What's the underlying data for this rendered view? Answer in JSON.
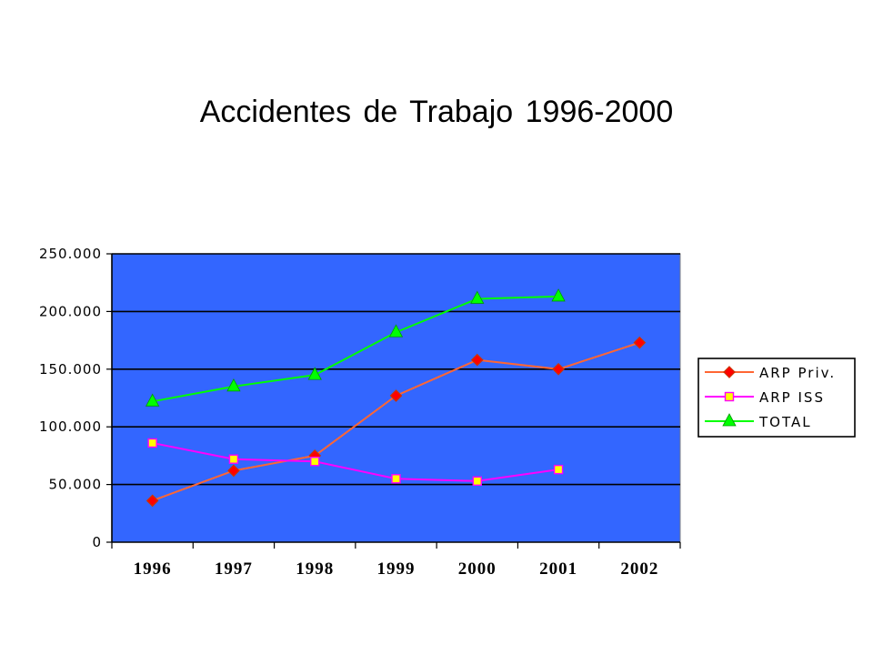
{
  "title": "Accidentes de Trabajo 1996-2000",
  "chart_data": {
    "type": "line",
    "title": "Accidentes de Trabajo 1996-2000",
    "xlabel": "",
    "ylabel": "",
    "categories": [
      "1996",
      "1997",
      "1998",
      "1999",
      "2000",
      "2001",
      "2002"
    ],
    "ylim": [
      0,
      250000
    ],
    "yticks": [
      0,
      50000,
      100000,
      150000,
      200000,
      250000
    ],
    "ytick_labels": [
      "0",
      "50.000",
      "100.000",
      "150.000",
      "200.000",
      "250.000"
    ],
    "grid": "horizontal",
    "legend_position": "right",
    "plot_background": "#3366ff",
    "series": [
      {
        "name": "ARP Priv.",
        "color": "#ff6633",
        "marker": "diamond",
        "marker_fill": "#ff0000",
        "values": [
          36000,
          62000,
          75000,
          127000,
          158000,
          150000,
          173000
        ]
      },
      {
        "name": "ARP ISS",
        "color": "#ff00ff",
        "marker": "square",
        "marker_fill": "#ffff00",
        "values": [
          86000,
          72000,
          70000,
          55000,
          53000,
          63000,
          null
        ]
      },
      {
        "name": "TOTAL",
        "color": "#00ff00",
        "marker": "triangle",
        "marker_fill": "#00ff00",
        "values": [
          122000,
          135000,
          145000,
          182000,
          211000,
          213000,
          null
        ]
      }
    ]
  }
}
